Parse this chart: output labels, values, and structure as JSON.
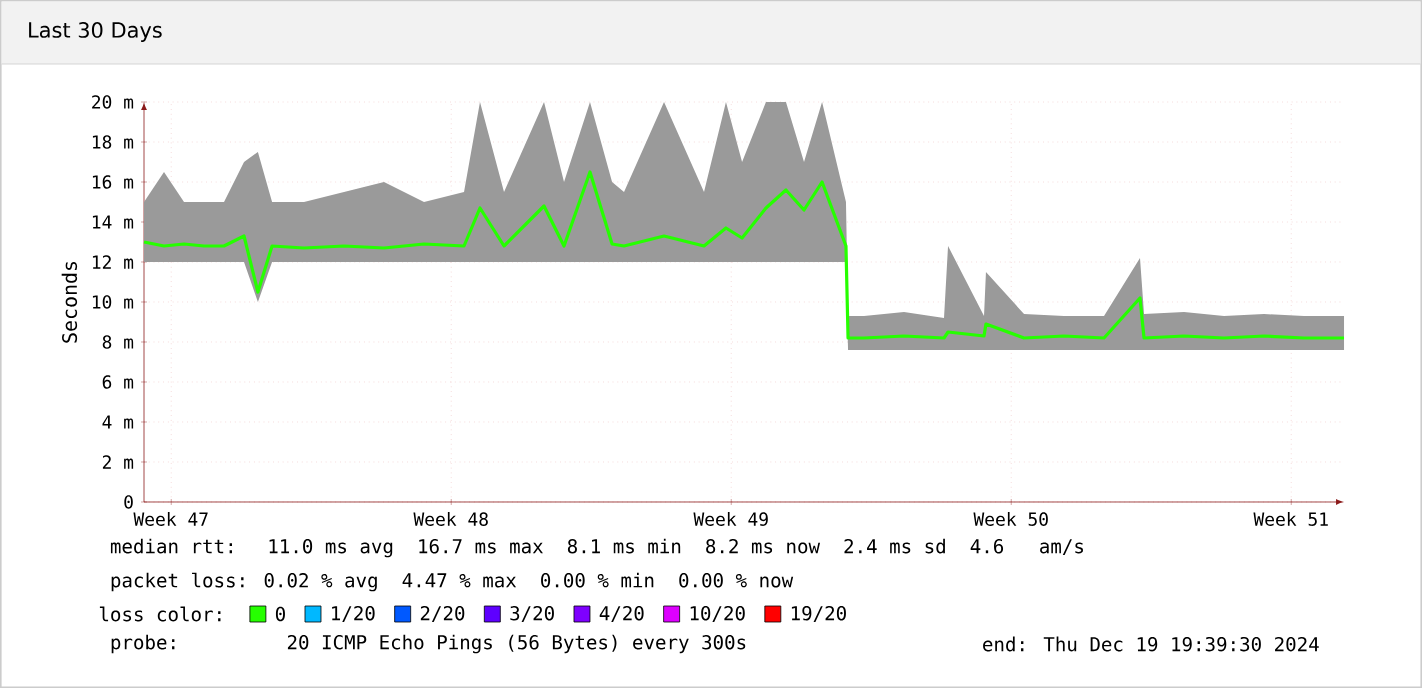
{
  "chart_data": {
    "type": "line",
    "title": "Last 30 Days",
    "ylabel": "Seconds",
    "x": [
      "2024-11-19T19:40",
      "2024-11-20T07:40",
      "2024-11-20T19:40",
      "2024-11-21T07:40",
      "2024-11-21T19:40",
      "2024-11-22T07:40",
      "2024-11-22T16:00",
      "2024-11-23T00:30",
      "2024-11-23T19:40",
      "2024-11-24T19:40",
      "2024-11-25T19:40",
      "2024-11-26T19:40",
      "2024-11-27T19:40",
      "2024-11-28T05:15",
      "2024-11-28T19:40",
      "2024-11-29T19:40",
      "2024-11-30T07:40",
      "2024-11-30T23:15",
      "2024-12-01T12:30",
      "2024-12-01T19:40",
      "2024-12-02T19:40",
      "2024-12-03T19:40",
      "2024-12-04T08:50",
      "2024-12-04T18:30",
      "2024-12-05T08:50",
      "2024-12-05T20:50",
      "2024-12-06T07:40",
      "2024-12-06T18:30",
      "2024-12-07T08:50",
      "2024-12-07T10:05",
      "2024-12-07T19:40",
      "2024-12-08T19:40",
      "2024-12-09T19:40",
      "2024-12-09T22:05",
      "2024-12-10T19:40",
      "2024-12-10T20:50",
      "2024-12-11T19:40",
      "2024-12-12T19:40",
      "2024-12-13T19:40",
      "2024-12-14T17:15",
      "2024-12-14T19:40",
      "2024-12-15T19:40",
      "2024-12-16T19:40",
      "2024-12-17T19:40",
      "2024-12-18T19:40",
      "2024-12-19T19:40"
    ],
    "xlim": [
      "2024-11-19T19:40",
      "2024-12-19T19:40"
    ],
    "xticks": [
      {
        "value": "2024-11-20T12:00",
        "label": "Week 47"
      },
      {
        "value": "2024-11-27T12:00",
        "label": "Week 48"
      },
      {
        "value": "2024-12-04T12:00",
        "label": "Week 49"
      },
      {
        "value": "2024-12-11T12:00",
        "label": "Week 50"
      },
      {
        "value": "2024-12-18T12:00",
        "label": "Week 51"
      }
    ],
    "ylim": [
      0,
      20
    ],
    "yticks": [
      0,
      {
        "value": 2,
        "label": "2 m"
      },
      {
        "value": 4,
        "label": "4 m"
      },
      {
        "value": 6,
        "label": "6 m"
      },
      {
        "value": 8,
        "label": "8 m"
      },
      {
        "value": 10,
        "label": "10 m"
      },
      {
        "value": 12,
        "label": "12 m"
      },
      {
        "value": 14,
        "label": "14 m"
      },
      {
        "value": 16,
        "label": "16 m"
      },
      {
        "value": 18,
        "label": "18 m"
      },
      {
        "value": 20,
        "label": "20 m"
      }
    ],
    "grid": true,
    "legend": "bottom",
    "legend_title": "loss color:",
    "series": [
      {
        "name": "0",
        "color": "#26ff00",
        "values": [
          13.0,
          12.8,
          12.9,
          12.8,
          12.8,
          13.3,
          10.5,
          12.8,
          12.7,
          12.8,
          12.7,
          12.9,
          12.8,
          14.7,
          12.8,
          14.8,
          12.8,
          16.5,
          12.9,
          12.8,
          13.3,
          12.8,
          13.7,
          13.2,
          14.7,
          15.6,
          14.6,
          16.0,
          12.8,
          8.2,
          8.2,
          8.3,
          8.2,
          8.5,
          8.3,
          8.9,
          8.2,
          8.3,
          8.2,
          10.2,
          8.2,
          8.3,
          8.2,
          8.3,
          8.2,
          8.2
        ],
        "lower": [
          12,
          12,
          12,
          12,
          12,
          12,
          10,
          12,
          12,
          12,
          12,
          12,
          12,
          12,
          12,
          12,
          12,
          12,
          12,
          12,
          12,
          12,
          12,
          12,
          12,
          12,
          12,
          12,
          12,
          7.6,
          7.6,
          7.6,
          7.6,
          7.6,
          7.6,
          7.6,
          7.6,
          7.6,
          7.6,
          7.6,
          7.6,
          7.6,
          7.6,
          7.6,
          7.6,
          7.6
        ],
        "upper": [
          15,
          16.5,
          15,
          15,
          15,
          17,
          17.5,
          15,
          15,
          15.5,
          16,
          15,
          15.5,
          20,
          15.5,
          20,
          16,
          20,
          16,
          15.5,
          20,
          15.5,
          20,
          17,
          20,
          20,
          17,
          20,
          15,
          9.3,
          9.3,
          9.5,
          9.2,
          12.8,
          9.3,
          11.5,
          9.4,
          9.3,
          9.3,
          12.2,
          9.4,
          9.5,
          9.3,
          9.4,
          9.3,
          9.3
        ]
      },
      {
        "name": "1/20",
        "color": "#00b8ff",
        "values": [
          null,
          null,
          null,
          null,
          null,
          null,
          null,
          null,
          null,
          null,
          null,
          null,
          null,
          null,
          null,
          null,
          null,
          null,
          null,
          null,
          null,
          null,
          null,
          null,
          null,
          null,
          null,
          null,
          null,
          null,
          null,
          null,
          null,
          null,
          null,
          null,
          null,
          null,
          null,
          null,
          null,
          null,
          null,
          null,
          null,
          null
        ]
      },
      {
        "name": "2/20",
        "color": "#0059ff",
        "values": [
          null,
          null,
          null,
          null,
          null,
          null,
          null,
          null,
          null,
          null,
          null,
          null,
          null,
          null,
          null,
          null,
          null,
          null,
          null,
          null,
          null,
          null,
          null,
          null,
          null,
          null,
          null,
          null,
          null,
          null,
          null,
          null,
          null,
          null,
          null,
          null,
          null,
          null,
          null,
          null,
          null,
          null,
          null,
          null,
          null,
          null
        ]
      },
      {
        "name": "3/20",
        "color": "#5e00ff",
        "values": [
          null,
          null,
          null,
          null,
          null,
          null,
          null,
          null,
          null,
          null,
          null,
          null,
          null,
          null,
          null,
          null,
          null,
          null,
          null,
          null,
          null,
          null,
          null,
          null,
          null,
          null,
          null,
          null,
          null,
          null,
          null,
          null,
          null,
          null,
          null,
          null,
          null,
          null,
          null,
          null,
          null,
          null,
          null,
          null,
          null,
          null
        ]
      },
      {
        "name": "4/20",
        "color": "#7e00ff",
        "values": [
          null,
          null,
          null,
          null,
          null,
          null,
          null,
          null,
          null,
          null,
          null,
          null,
          null,
          null,
          null,
          null,
          null,
          null,
          null,
          null,
          null,
          null,
          null,
          null,
          null,
          null,
          null,
          null,
          null,
          null,
          null,
          null,
          null,
          null,
          null,
          null,
          null,
          null,
          null,
          null,
          null,
          null,
          null,
          null,
          null,
          null
        ]
      },
      {
        "name": "10/20",
        "color": "#dd00ff",
        "values": [
          null,
          null,
          null,
          null,
          null,
          null,
          null,
          null,
          null,
          null,
          null,
          null,
          null,
          null,
          null,
          null,
          null,
          null,
          null,
          null,
          null,
          null,
          null,
          null,
          null,
          null,
          null,
          null,
          null,
          null,
          null,
          null,
          null,
          null,
          null,
          null,
          null,
          null,
          null,
          null,
          null,
          null,
          null,
          null,
          null,
          null
        ]
      },
      {
        "name": "19/20",
        "color": "#ff0000",
        "values": [
          null,
          null,
          null,
          null,
          null,
          null,
          null,
          null,
          null,
          null,
          null,
          null,
          null,
          null,
          null,
          null,
          null,
          null,
          null,
          null,
          null,
          null,
          null,
          null,
          null,
          null,
          null,
          null,
          null,
          null,
          null,
          null,
          null,
          null,
          null,
          null,
          null,
          null,
          null,
          null,
          null,
          null,
          null,
          null,
          null,
          null
        ]
      }
    ],
    "annotations": [
      "median rtt:  11.0 ms avg  16.7 ms max  8.1 ms min  8.2 ms now  2.4 ms sd  4.6   am/s",
      "packet loss: 0.02 % avg  4.47 % max  0.00 % min  0.00 % now",
      "probe:       20 ICMP Echo Pings (56 Bytes) every 300s",
      "end: Thu Dec 19 19:39:30 2024"
    ]
  }
}
